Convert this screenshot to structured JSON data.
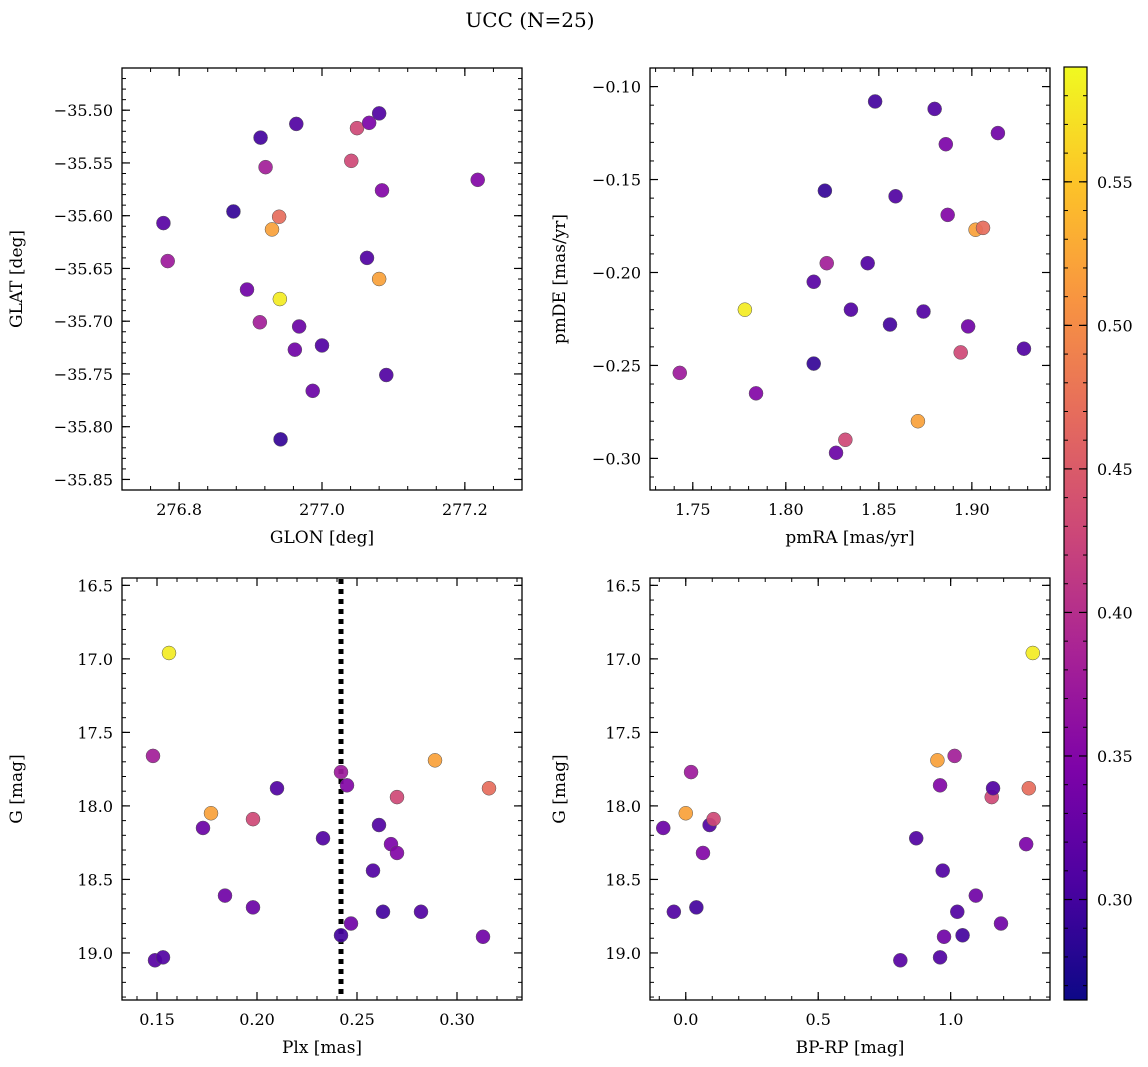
{
  "figure_title": "UCC (N=25)",
  "colorbar": {
    "colormap": "plasma",
    "range": [
      0.265,
      0.59
    ],
    "ticks": [
      "0.30",
      "0.35",
      "0.40",
      "0.45",
      "0.50",
      "0.55"
    ]
  },
  "colors": {
    "marker_edge": "#555555",
    "frame": "#000000",
    "background": "#ffffff",
    "vline": "#000000"
  },
  "chart_data": [
    {
      "type": "scatter",
      "name": "sky",
      "xlabel": "GLON [deg]",
      "ylabel": "GLAT [deg]",
      "xlim": [
        276.72,
        277.28
      ],
      "ylim": [
        -35.86,
        -35.46
      ],
      "xticks": [
        276.8,
        277.0,
        277.2
      ],
      "xtick_labels": [
        "276.8",
        "277.0",
        "277.2"
      ],
      "yticks": [
        -35.85,
        -35.8,
        -35.75,
        -35.7,
        -35.65,
        -35.6,
        -35.55,
        -35.5
      ],
      "ytick_labels": [
        "−35.85",
        "−35.80",
        "−35.75",
        "−35.70",
        "−35.65",
        "−35.60",
        "−35.55",
        "−35.50"
      ],
      "points": [
        {
          "x": 276.778,
          "y": -35.607,
          "c": 0.315
        },
        {
          "x": 276.784,
          "y": -35.643,
          "c": 0.375
        },
        {
          "x": 276.876,
          "y": -35.596,
          "c": 0.29
        },
        {
          "x": 276.895,
          "y": -35.67,
          "c": 0.335
        },
        {
          "x": 276.914,
          "y": -35.526,
          "c": 0.3
        },
        {
          "x": 276.921,
          "y": -35.554,
          "c": 0.38
        },
        {
          "x": 276.93,
          "y": -35.613,
          "c": 0.52
        },
        {
          "x": 276.94,
          "y": -35.601,
          "c": 0.47
        },
        {
          "x": 276.941,
          "y": -35.679,
          "c": 0.58
        },
        {
          "x": 276.942,
          "y": -35.812,
          "c": 0.29
        },
        {
          "x": 276.913,
          "y": -35.701,
          "c": 0.38
        },
        {
          "x": 276.962,
          "y": -35.727,
          "c": 0.335
        },
        {
          "x": 276.964,
          "y": -35.513,
          "c": 0.31
        },
        {
          "x": 276.968,
          "y": -35.705,
          "c": 0.33
        },
        {
          "x": 276.987,
          "y": -35.766,
          "c": 0.33
        },
        {
          "x": 277.0,
          "y": -35.723,
          "c": 0.31
        },
        {
          "x": 277.041,
          "y": -35.548,
          "c": 0.43
        },
        {
          "x": 277.049,
          "y": -35.517,
          "c": 0.43
        },
        {
          "x": 277.063,
          "y": -35.64,
          "c": 0.31
        },
        {
          "x": 277.066,
          "y": -35.512,
          "c": 0.345
        },
        {
          "x": 277.08,
          "y": -35.66,
          "c": 0.52
        },
        {
          "x": 277.08,
          "y": -35.503,
          "c": 0.31
        },
        {
          "x": 277.084,
          "y": -35.576,
          "c": 0.35
        },
        {
          "x": 277.09,
          "y": -35.751,
          "c": 0.31
        },
        {
          "x": 277.218,
          "y": -35.566,
          "c": 0.35
        }
      ]
    },
    {
      "type": "scatter",
      "name": "proper-motion",
      "xlabel": "pmRA [mas/yr]",
      "ylabel": "pmDE [mas/yr]",
      "xlim": [
        1.727,
        1.942
      ],
      "ylim": [
        -0.317,
        -0.09
      ],
      "xticks": [
        1.75,
        1.8,
        1.85,
        1.9
      ],
      "xtick_labels": [
        "1.75",
        "1.80",
        "1.85",
        "1.90"
      ],
      "yticks": [
        -0.3,
        -0.25,
        -0.2,
        -0.15,
        -0.1
      ],
      "ytick_labels": [
        "−0.30",
        "−0.25",
        "−0.20",
        "−0.15",
        "−0.10"
      ],
      "points": [
        {
          "x": 1.743,
          "y": -0.254,
          "c": 0.375
        },
        {
          "x": 1.778,
          "y": -0.22,
          "c": 0.58
        },
        {
          "x": 1.784,
          "y": -0.265,
          "c": 0.35
        },
        {
          "x": 1.815,
          "y": -0.205,
          "c": 0.315
        },
        {
          "x": 1.815,
          "y": -0.249,
          "c": 0.29
        },
        {
          "x": 1.821,
          "y": -0.156,
          "c": 0.29
        },
        {
          "x": 1.822,
          "y": -0.195,
          "c": 0.38
        },
        {
          "x": 1.827,
          "y": -0.297,
          "c": 0.33
        },
        {
          "x": 1.832,
          "y": -0.29,
          "c": 0.43
        },
        {
          "x": 1.835,
          "y": -0.22,
          "c": 0.31
        },
        {
          "x": 1.844,
          "y": -0.195,
          "c": 0.31
        },
        {
          "x": 1.848,
          "y": -0.108,
          "c": 0.3
        },
        {
          "x": 1.856,
          "y": -0.228,
          "c": 0.3
        },
        {
          "x": 1.859,
          "y": -0.159,
          "c": 0.31
        },
        {
          "x": 1.871,
          "y": -0.28,
          "c": 0.52
        },
        {
          "x": 1.874,
          "y": -0.221,
          "c": 0.31
        },
        {
          "x": 1.88,
          "y": -0.112,
          "c": 0.31
        },
        {
          "x": 1.886,
          "y": -0.131,
          "c": 0.345
        },
        {
          "x": 1.887,
          "y": -0.169,
          "c": 0.35
        },
        {
          "x": 1.894,
          "y": -0.243,
          "c": 0.43
        },
        {
          "x": 1.898,
          "y": -0.229,
          "c": 0.335
        },
        {
          "x": 1.902,
          "y": -0.177,
          "c": 0.52
        },
        {
          "x": 1.906,
          "y": -0.176,
          "c": 0.47
        },
        {
          "x": 1.914,
          "y": -0.125,
          "c": 0.335
        },
        {
          "x": 1.928,
          "y": -0.241,
          "c": 0.31
        }
      ]
    },
    {
      "type": "scatter",
      "name": "parallax-magnitude",
      "xlabel": "Plx [mas]",
      "ylabel": "G [mag]",
      "xlim": [
        0.1325,
        0.3325
      ],
      "ylim": [
        19.32,
        16.45
      ],
      "xticks": [
        0.15,
        0.2,
        0.25,
        0.3
      ],
      "xtick_labels": [
        "0.15",
        "0.20",
        "0.25",
        "0.30"
      ],
      "yticks": [
        16.5,
        17.0,
        17.5,
        18.0,
        18.5,
        19.0
      ],
      "ytick_labels": [
        "16.5",
        "17.0",
        "17.5",
        "18.0",
        "18.5",
        "19.0"
      ],
      "vline": 0.242,
      "points": [
        {
          "x": 0.148,
          "y": 17.66,
          "c": 0.38
        },
        {
          "x": 0.156,
          "y": 16.96,
          "c": 0.58
        },
        {
          "x": 0.177,
          "y": 18.05,
          "c": 0.52
        },
        {
          "x": 0.198,
          "y": 18.09,
          "c": 0.43
        },
        {
          "x": 0.173,
          "y": 18.15,
          "c": 0.33
        },
        {
          "x": 0.21,
          "y": 17.88,
          "c": 0.31
        },
        {
          "x": 0.184,
          "y": 18.61,
          "c": 0.335
        },
        {
          "x": 0.198,
          "y": 18.69,
          "c": 0.33
        },
        {
          "x": 0.149,
          "y": 19.05,
          "c": 0.315
        },
        {
          "x": 0.153,
          "y": 19.03,
          "c": 0.31
        },
        {
          "x": 0.233,
          "y": 18.22,
          "c": 0.31
        },
        {
          "x": 0.242,
          "y": 17.77,
          "c": 0.375
        },
        {
          "x": 0.245,
          "y": 17.86,
          "c": 0.35
        },
        {
          "x": 0.242,
          "y": 18.88,
          "c": 0.3
        },
        {
          "x": 0.247,
          "y": 18.8,
          "c": 0.335
        },
        {
          "x": 0.258,
          "y": 18.44,
          "c": 0.31
        },
        {
          "x": 0.261,
          "y": 18.13,
          "c": 0.31
        },
        {
          "x": 0.267,
          "y": 18.26,
          "c": 0.345
        },
        {
          "x": 0.27,
          "y": 18.32,
          "c": 0.35
        },
        {
          "x": 0.263,
          "y": 18.72,
          "c": 0.3
        },
        {
          "x": 0.27,
          "y": 17.94,
          "c": 0.43
        },
        {
          "x": 0.282,
          "y": 18.72,
          "c": 0.31
        },
        {
          "x": 0.289,
          "y": 17.69,
          "c": 0.52
        },
        {
          "x": 0.313,
          "y": 18.89,
          "c": 0.335
        },
        {
          "x": 0.316,
          "y": 17.88,
          "c": 0.47
        }
      ]
    },
    {
      "type": "scatter",
      "name": "color-magnitude",
      "xlabel": "BP-RP [mag]",
      "ylabel": "G [mag]",
      "xlim": [
        -0.135,
        1.375
      ],
      "ylim": [
        19.32,
        16.45
      ],
      "xticks": [
        0.0,
        0.5,
        1.0
      ],
      "xtick_labels": [
        "0.0",
        "0.5",
        "1.0"
      ],
      "yticks": [
        16.5,
        17.0,
        17.5,
        18.0,
        18.5,
        19.0
      ],
      "ytick_labels": [
        "16.5",
        "17.0",
        "17.5",
        "18.0",
        "18.5",
        "19.0"
      ],
      "points": [
        {
          "x": -0.085,
          "y": 18.15,
          "c": 0.33
        },
        {
          "x": -0.045,
          "y": 18.72,
          "c": 0.31
        },
        {
          "x": 0.0,
          "y": 18.05,
          "c": 0.52
        },
        {
          "x": 0.02,
          "y": 17.77,
          "c": 0.375
        },
        {
          "x": 0.04,
          "y": 18.69,
          "c": 0.3
        },
        {
          "x": 0.065,
          "y": 18.32,
          "c": 0.35
        },
        {
          "x": 0.09,
          "y": 18.13,
          "c": 0.31
        },
        {
          "x": 0.105,
          "y": 18.09,
          "c": 0.43
        },
        {
          "x": 0.81,
          "y": 19.05,
          "c": 0.315
        },
        {
          "x": 0.87,
          "y": 18.22,
          "c": 0.31
        },
        {
          "x": 0.95,
          "y": 17.69,
          "c": 0.52
        },
        {
          "x": 0.96,
          "y": 17.86,
          "c": 0.35
        },
        {
          "x": 0.96,
          "y": 19.03,
          "c": 0.31
        },
        {
          "x": 0.97,
          "y": 18.44,
          "c": 0.31
        },
        {
          "x": 0.975,
          "y": 18.89,
          "c": 0.335
        },
        {
          "x": 1.015,
          "y": 17.66,
          "c": 0.38
        },
        {
          "x": 1.025,
          "y": 18.72,
          "c": 0.31
        },
        {
          "x": 1.045,
          "y": 18.88,
          "c": 0.3
        },
        {
          "x": 1.095,
          "y": 18.61,
          "c": 0.335
        },
        {
          "x": 1.155,
          "y": 17.94,
          "c": 0.43
        },
        {
          "x": 1.16,
          "y": 17.88,
          "c": 0.31
        },
        {
          "x": 1.19,
          "y": 18.8,
          "c": 0.335
        },
        {
          "x": 1.285,
          "y": 18.26,
          "c": 0.345
        },
        {
          "x": 1.295,
          "y": 17.88,
          "c": 0.47
        },
        {
          "x": 1.31,
          "y": 16.96,
          "c": 0.58
        }
      ]
    }
  ]
}
